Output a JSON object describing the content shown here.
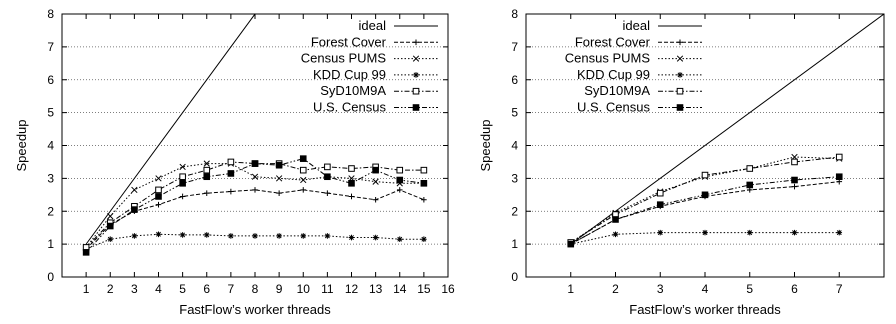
{
  "chart_data": [
    {
      "type": "line",
      "title": "",
      "xlabel": "FastFlow’s worker threads",
      "ylabel": "Speedup",
      "xlim": [
        0,
        16
      ],
      "ylim": [
        0,
        8
      ],
      "xticks": [
        1,
        2,
        3,
        4,
        5,
        6,
        7,
        8,
        9,
        10,
        11,
        12,
        13,
        14,
        15,
        16
      ],
      "yticks": [
        0,
        1,
        2,
        3,
        4,
        5,
        6,
        7,
        8
      ],
      "grid": "horizontal dotted",
      "legend_position": "top-right",
      "series": [
        {
          "name": "ideal",
          "style": "solid",
          "marker": "none",
          "x": [
            1,
            8
          ],
          "y": [
            1,
            8
          ]
        },
        {
          "name": "Forest Cover",
          "style": "dashed",
          "marker": "plus",
          "x": [
            1,
            2,
            3,
            4,
            5,
            6,
            7,
            8,
            9,
            10,
            11,
            12,
            13,
            14,
            15
          ],
          "y": [
            0.85,
            1.6,
            2.0,
            2.2,
            2.45,
            2.55,
            2.6,
            2.65,
            2.55,
            2.65,
            2.55,
            2.45,
            2.35,
            2.65,
            2.35
          ]
        },
        {
          "name": "Census PUMS",
          "style": "dotted",
          "marker": "cross",
          "x": [
            1,
            2,
            3,
            4,
            5,
            6,
            7,
            8,
            9,
            10,
            11,
            12,
            13,
            14,
            15
          ],
          "y": [
            0.9,
            1.85,
            2.65,
            3.0,
            3.35,
            3.45,
            3.45,
            3.05,
            3.0,
            2.95,
            3.05,
            3.0,
            2.9,
            2.85,
            2.85
          ]
        },
        {
          "name": "KDD Cup 99",
          "style": "dotted",
          "marker": "star",
          "x": [
            1,
            2,
            3,
            4,
            5,
            6,
            7,
            8,
            9,
            10,
            11,
            12,
            13,
            14,
            15
          ],
          "y": [
            0.85,
            1.15,
            1.25,
            1.3,
            1.28,
            1.28,
            1.25,
            1.25,
            1.25,
            1.25,
            1.25,
            1.2,
            1.2,
            1.15,
            1.15
          ]
        },
        {
          "name": "SyD10M9A",
          "style": "dash-dot",
          "marker": "open-square",
          "x": [
            1,
            2,
            3,
            4,
            5,
            6,
            7,
            8,
            9,
            10,
            11,
            12,
            13,
            14,
            15
          ],
          "y": [
            0.9,
            1.65,
            2.15,
            2.65,
            3.05,
            3.25,
            3.5,
            3.45,
            3.45,
            3.25,
            3.35,
            3.3,
            3.35,
            3.25,
            3.25
          ]
        },
        {
          "name": "U.S. Census",
          "style": "dash-dot-dot",
          "marker": "filled-square",
          "x": [
            1,
            2,
            3,
            4,
            5,
            6,
            7,
            8,
            9,
            10,
            11,
            12,
            13,
            14,
            15
          ],
          "y": [
            0.75,
            1.55,
            2.05,
            2.45,
            2.85,
            3.05,
            3.15,
            3.45,
            3.4,
            3.6,
            3.05,
            2.85,
            3.25,
            2.95,
            2.85
          ]
        }
      ]
    },
    {
      "type": "line",
      "title": "",
      "xlabel": "FastFlow’s worker threads",
      "ylabel": "Speedup",
      "xlim": [
        0,
        8
      ],
      "ylim": [
        0,
        8
      ],
      "xticks": [
        1,
        2,
        3,
        4,
        5,
        6,
        7
      ],
      "yticks": [
        0,
        1,
        2,
        3,
        4,
        5,
        6,
        7,
        8
      ],
      "grid": "horizontal dotted",
      "legend_position": "top-left",
      "series": [
        {
          "name": "ideal",
          "style": "solid",
          "marker": "none",
          "x": [
            1,
            8
          ],
          "y": [
            1,
            8
          ]
        },
        {
          "name": "Forest Cover",
          "style": "dashed",
          "marker": "plus",
          "x": [
            1,
            2,
            3,
            4,
            5,
            6,
            7
          ],
          "y": [
            1.0,
            1.75,
            2.15,
            2.45,
            2.65,
            2.75,
            2.9
          ]
        },
        {
          "name": "Census PUMS",
          "style": "dotted",
          "marker": "cross",
          "x": [
            1,
            2,
            3,
            4,
            5,
            6,
            7
          ],
          "y": [
            1.05,
            1.95,
            2.6,
            3.05,
            3.3,
            3.65,
            3.6
          ]
        },
        {
          "name": "KDD Cup 99",
          "style": "dotted",
          "marker": "star",
          "x": [
            1,
            2,
            3,
            4,
            5,
            6,
            7
          ],
          "y": [
            1.0,
            1.3,
            1.35,
            1.35,
            1.35,
            1.35,
            1.35
          ]
        },
        {
          "name": "SyD10M9A",
          "style": "dash-dot",
          "marker": "open-square",
          "x": [
            1,
            2,
            3,
            4,
            5,
            6,
            7
          ],
          "y": [
            1.05,
            1.9,
            2.55,
            3.1,
            3.3,
            3.5,
            3.65
          ]
        },
        {
          "name": "U.S. Census",
          "style": "dash-dot-dot",
          "marker": "filled-square",
          "x": [
            1,
            2,
            3,
            4,
            5,
            6,
            7
          ],
          "y": [
            1.0,
            1.75,
            2.2,
            2.5,
            2.8,
            2.95,
            3.05
          ]
        }
      ]
    }
  ]
}
